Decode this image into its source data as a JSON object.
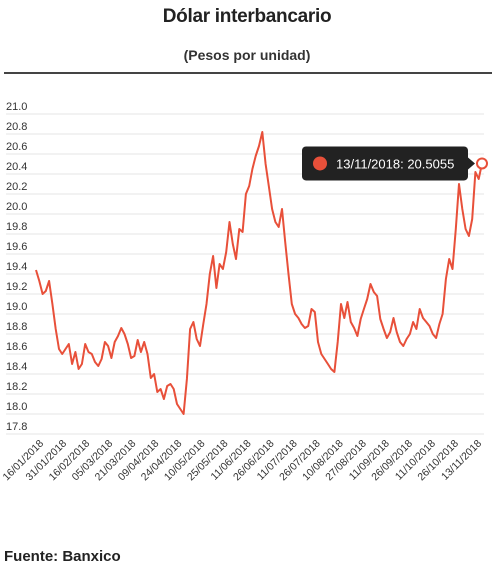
{
  "header": {
    "title": "Dólar interbancario",
    "subtitle": "(Pesos por unidad)"
  },
  "footer": {
    "source": "Fuente: Banxico"
  },
  "tooltip": {
    "text": "13/11/2018: 20.5055"
  },
  "colors": {
    "line": "#e8503a",
    "grid": "#e6e6e6",
    "tooltip_bg": "#222222"
  },
  "chart_data": {
    "type": "line",
    "title": "Dólar interbancario",
    "subtitle": "(Pesos por unidad)",
    "ylim": [
      17.8,
      21.0
    ],
    "y_ticks": [
      17.8,
      18.0,
      18.2,
      18.4,
      18.6,
      18.8,
      19.0,
      19.2,
      19.4,
      19.6,
      19.8,
      20.0,
      20.2,
      20.4,
      20.6,
      20.8,
      21.0
    ],
    "x_tick_labels": [
      "16/01/2018",
      "31/01/2018",
      "16/02/2018",
      "05/03/2018",
      "21/03/2018",
      "09/04/2018",
      "24/04/2018",
      "10/05/2018",
      "25/05/2018",
      "11/06/2018",
      "26/06/2018",
      "11/07/2018",
      "26/07/2018",
      "10/08/2018",
      "27/08/2018",
      "11/09/2018",
      "26/09/2018",
      "11/10/2018",
      "26/10/2018",
      "13/11/2018"
    ],
    "grid": "horizontal",
    "highlighted_point": {
      "x": "13/11/2018",
      "y": 20.5055
    },
    "series": [
      {
        "values": [
          19.44,
          19.33,
          19.2,
          19.23,
          19.33,
          19.1,
          18.85,
          18.65,
          18.6,
          18.65,
          18.7,
          18.5,
          18.62,
          18.45,
          18.5,
          18.7,
          18.62,
          18.6,
          18.52,
          18.48,
          18.55,
          18.72,
          18.68,
          18.56,
          18.72,
          18.78,
          18.86,
          18.8,
          18.7,
          18.56,
          18.58,
          18.74,
          18.62,
          18.72,
          18.6,
          18.36,
          18.4,
          18.22,
          18.25,
          18.15,
          18.28,
          18.3,
          18.25,
          18.1,
          18.05,
          18.0,
          18.35,
          18.85,
          18.92,
          18.75,
          18.68,
          18.9,
          19.1,
          19.4,
          19.58,
          19.26,
          19.5,
          19.45,
          19.62,
          19.92,
          19.7,
          19.55,
          19.85,
          19.82,
          20.2,
          20.28,
          20.45,
          20.58,
          20.68,
          20.82,
          20.5,
          20.28,
          20.05,
          19.92,
          19.87,
          20.05,
          19.72,
          19.4,
          19.1,
          19.0,
          18.96,
          18.9,
          18.86,
          18.88,
          19.05,
          19.02,
          18.72,
          18.6,
          18.55,
          18.5,
          18.45,
          18.42,
          18.72,
          19.1,
          18.96,
          19.12,
          18.92,
          18.86,
          18.78,
          18.95,
          19.05,
          19.15,
          19.3,
          19.22,
          19.18,
          18.95,
          18.85,
          18.76,
          18.82,
          18.96,
          18.82,
          18.72,
          18.68,
          18.75,
          18.8,
          18.92,
          18.85,
          19.05,
          18.96,
          18.92,
          18.88,
          18.8,
          18.76,
          18.9,
          19.0,
          19.35,
          19.55,
          19.45,
          19.85,
          20.3,
          20.05,
          19.85,
          19.78,
          19.95,
          20.42,
          20.35,
          20.5055
        ]
      }
    ]
  }
}
